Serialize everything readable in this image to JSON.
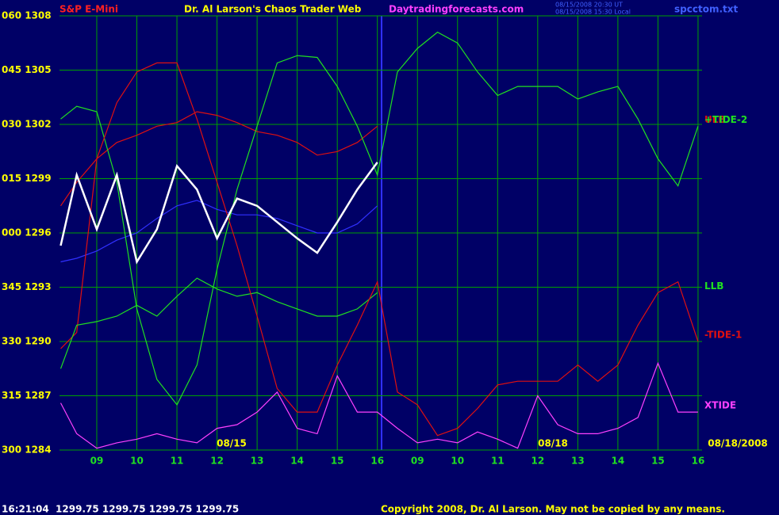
{
  "chart_data": {
    "type": "line",
    "title": "Dr. Al Larson's Chaos Trader Web",
    "instrument": "S&P E-Mini",
    "website": "Daytradingforecasts.com",
    "timestamp_ut": "08/15/2008 20:30 UT",
    "timestamp_local": "08/15/2008 15:30 Local",
    "file_name": "spcctom.txt",
    "status_line": "16:21:04  1299.75 1299.75 1299.75 1299.75",
    "copyright": "Copyright 2008, Dr. Al Larson. May not be copied by any means.",
    "date_labels": [
      "08/15",
      "08/18",
      "08/18/2008"
    ],
    "x": [
      0.1,
      0.5,
      1,
      1.5,
      2,
      2.5,
      3,
      3.5,
      4,
      4.5,
      5,
      5.5,
      6,
      6.5,
      7,
      7.5,
      8,
      8.5,
      9,
      9.5,
      10,
      10.5,
      11,
      11.5,
      12,
      12.5,
      13,
      13.5,
      14,
      14.5,
      15,
      15.5,
      16
    ],
    "xlim": [
      0.07,
      16.1
    ],
    "xticks": [
      {
        "value": 1,
        "label": "09"
      },
      {
        "value": 2,
        "label": "10"
      },
      {
        "value": 3,
        "label": "11"
      },
      {
        "value": 4,
        "label": "12"
      },
      {
        "value": 5,
        "label": "13"
      },
      {
        "value": 6,
        "label": "14"
      },
      {
        "value": 7,
        "label": "15"
      },
      {
        "value": 8,
        "label": "16"
      },
      {
        "value": 9,
        "label": "09"
      },
      {
        "value": 10,
        "label": "10"
      },
      {
        "value": 11,
        "label": "11"
      },
      {
        "value": 12,
        "label": "12"
      },
      {
        "value": 13,
        "label": "13"
      },
      {
        "value": 14,
        "label": "14"
      },
      {
        "value": 15,
        "label": "15"
      },
      {
        "value": 16,
        "label": "16"
      }
    ],
    "ylim": [
      1284,
      1308
    ],
    "yticks": [
      {
        "value": 1284,
        "label": "300 1284"
      },
      {
        "value": 1287,
        "label": "315 1287"
      },
      {
        "value": 1290,
        "label": "330 1290"
      },
      {
        "value": 1293,
        "label": "345 1293"
      },
      {
        "value": 1296,
        "label": "000 1296"
      },
      {
        "value": 1299,
        "label": "015 1299"
      },
      {
        "value": 1302,
        "label": "030 1302"
      },
      {
        "value": 1305,
        "label": "045 1305"
      },
      {
        "value": 1308,
        "label": "060 1308"
      }
    ],
    "grid": true,
    "series": [
      {
        "color": "#3030ff",
        "values": [
          1294.4,
          1294.6,
          1295.0,
          1295.6,
          1296.0,
          1296.8,
          1297.5,
          1297.8,
          1297.3,
          1297.0,
          1297.0,
          1296.8,
          1296.4,
          1296.0,
          1296.0,
          1296.5,
          1297.5,
          null,
          null,
          null,
          null,
          null,
          null,
          null,
          null,
          null,
          null,
          null,
          null,
          null,
          null,
          null,
          null
        ]
      },
      {
        "name": "ULB",
        "color": "#e01010",
        "values": [
          1289.6,
          1290.5,
          1300.1,
          1301.0,
          1301.4,
          1301.9,
          1302.1,
          1302.7,
          1302.5,
          1302.1,
          1301.6,
          1301.4,
          1301.0,
          1300.3,
          1300.5,
          1301.0,
          1301.9,
          null,
          null,
          null,
          null,
          null,
          null,
          null,
          null,
          null,
          null,
          null,
          null,
          null,
          null,
          null,
          null
        ]
      },
      {
        "name": "+TIDE-2",
        "color": "#20e020",
        "values": [
          1302.3,
          1303.0,
          1302.7,
          1298.8,
          1291.8,
          1287.9,
          1286.5,
          1288.7,
          1294.0,
          1298.4,
          1301.9,
          1305.4,
          1305.8,
          1305.7,
          1304.1,
          1301.9,
          1299.2,
          1304.9,
          1306.2,
          1307.1,
          1306.5,
          1304.9,
          1303.6,
          1304.1,
          1304.1,
          1304.1,
          1303.4,
          1303.8,
          1304.1,
          1302.3,
          1300.1,
          1298.6,
          1301.9
        ]
      },
      {
        "name": "LLB",
        "color": "#20e020",
        "values": [
          1288.5,
          1290.9,
          1291.1,
          1291.4,
          1292.0,
          1291.4,
          1292.5,
          1293.5,
          1292.9,
          1292.5,
          1292.7,
          1292.2,
          1291.8,
          1291.4,
          1291.4,
          1291.8,
          1292.7,
          null,
          null,
          null,
          null,
          null,
          null,
          null,
          null,
          null,
          null,
          null,
          null,
          null,
          null,
          null,
          null
        ]
      },
      {
        "name": "-TIDE-1",
        "color": "#e01010",
        "values": [
          1297.5,
          1298.8,
          1300.1,
          1303.2,
          1304.9,
          1305.4,
          1305.4,
          1302.3,
          1298.8,
          1295.3,
          1291.4,
          1287.4,
          1286.1,
          1286.1,
          1288.7,
          1290.9,
          1293.3,
          1287.2,
          1286.5,
          1284.8,
          1285.2,
          1286.3,
          1287.6,
          1287.8,
          1287.8,
          1287.8,
          1288.7,
          1287.8,
          1288.7,
          1290.9,
          1292.7,
          1293.3,
          1290.0
        ]
      },
      {
        "name": "XTIDE",
        "color": "#ff40ff",
        "values": [
          1286.6,
          1284.9,
          1284.1,
          1284.4,
          1284.6,
          1284.9,
          1284.6,
          1284.4,
          1285.2,
          1285.4,
          1286.1,
          1287.2,
          1285.2,
          1284.9,
          1288.1,
          1286.1,
          1286.1,
          1285.2,
          1284.4,
          1284.6,
          1284.4,
          1285.0,
          1284.6,
          1284.1,
          1287.0,
          1285.4,
          1284.9,
          1284.9,
          1285.2,
          1285.8,
          1288.8,
          1286.1,
          1286.1
        ]
      },
      {
        "color": "#ffffff",
        "values": [
          1295.3,
          1299.2,
          1296.2,
          1299.2,
          1294.4,
          1296.2,
          1299.7,
          1298.4,
          1295.7,
          1297.9,
          1297.5,
          1296.6,
          1295.7,
          1294.9,
          1296.6,
          1298.4,
          1299.9,
          null,
          null,
          null,
          null,
          null,
          null,
          null,
          null,
          null,
          null,
          null,
          null,
          null,
          null,
          null,
          null
        ]
      }
    ]
  }
}
